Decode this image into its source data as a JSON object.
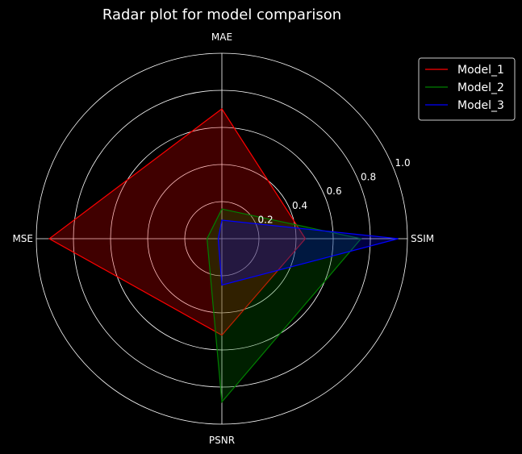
{
  "chart_data": {
    "type": "radar",
    "title": "Radar plot for model comparison",
    "axes": [
      "MAE",
      "SSIM",
      "PSNR",
      "MSE"
    ],
    "rlim": [
      0,
      1.0
    ],
    "rticks": [
      "0.2",
      "0.4",
      "0.6",
      "0.8",
      "1.0"
    ],
    "rtick_values": [
      0.2,
      0.4,
      0.6,
      0.8,
      1.0
    ],
    "grid": true,
    "legend_position": "upper-right",
    "series": [
      {
        "name": "Model_1",
        "color": "#ff0000",
        "values": [
          0.7,
          0.45,
          0.52,
          0.93
        ]
      },
      {
        "name": "Model_2",
        "color": "#008000",
        "values": [
          0.16,
          0.75,
          0.88,
          0.08
        ]
      },
      {
        "name": "Model_3",
        "color": "#0000ff",
        "values": [
          0.1,
          0.95,
          0.25,
          0.02
        ]
      }
    ]
  }
}
